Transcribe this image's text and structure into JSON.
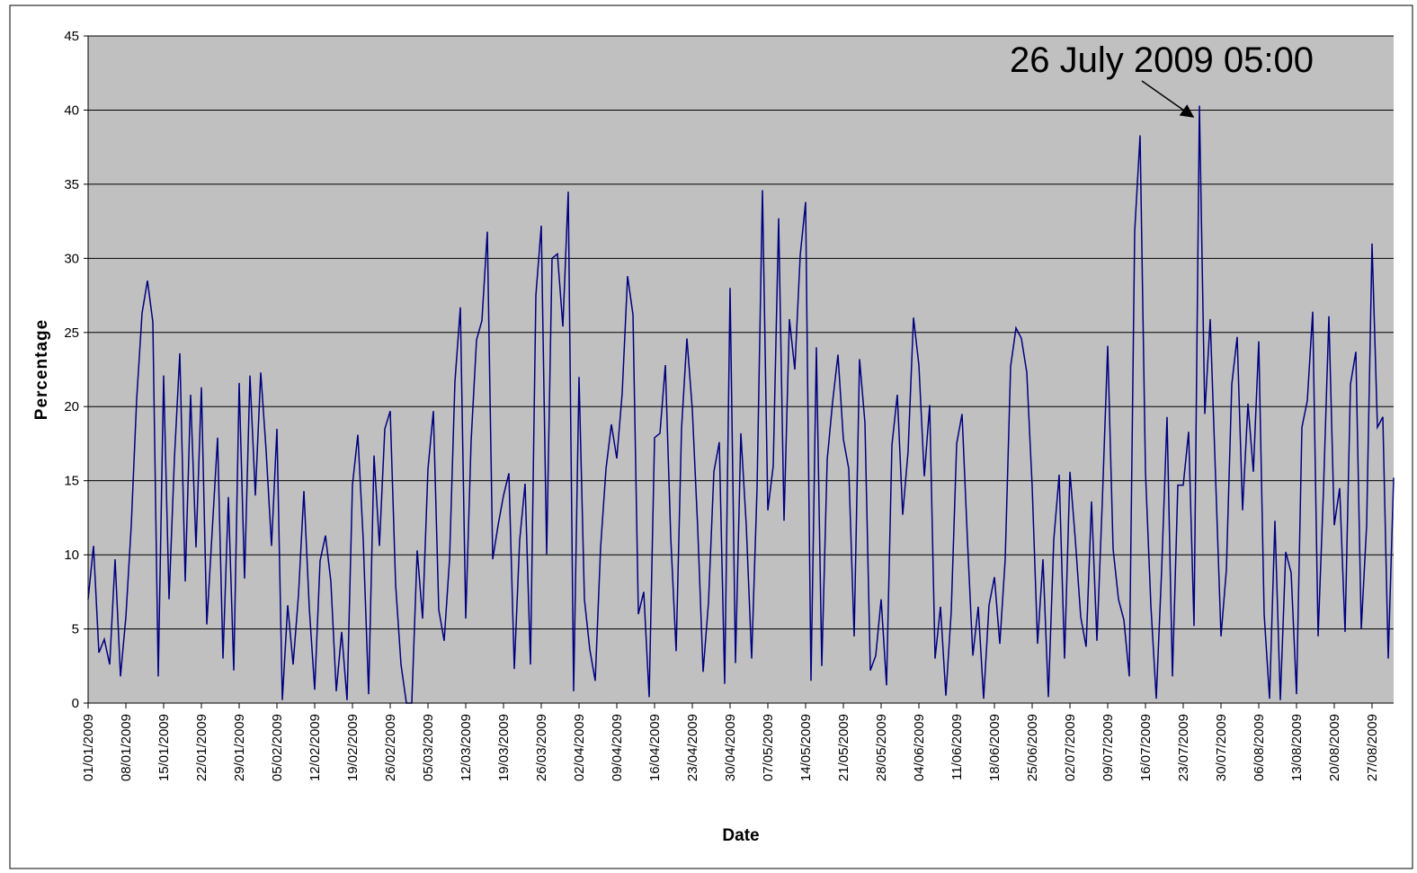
{
  "chart_data": {
    "type": "line",
    "xlabel": "Date",
    "ylabel": "Percentage",
    "annotation": "26 July 2009 05:00",
    "ylim": [
      0,
      45
    ],
    "yticks": [
      0,
      5,
      10,
      15,
      20,
      25,
      30,
      35,
      40,
      45
    ],
    "grid": true,
    "categories": [
      "01/01/2009",
      null,
      null,
      null,
      null,
      null,
      null,
      "08/01/2009",
      null,
      null,
      null,
      null,
      null,
      null,
      "15/01/2009",
      null,
      null,
      null,
      null,
      null,
      null,
      "22/01/2009",
      null,
      null,
      null,
      null,
      null,
      null,
      "29/01/2009",
      null,
      null,
      null,
      null,
      null,
      null,
      "05/02/2009",
      null,
      null,
      null,
      null,
      null,
      null,
      "12/02/2009",
      null,
      null,
      null,
      null,
      null,
      null,
      "19/02/2009",
      null,
      null,
      null,
      null,
      null,
      null,
      "26/02/2009",
      null,
      null,
      null,
      null,
      null,
      null,
      "05/03/2009",
      null,
      null,
      null,
      null,
      null,
      null,
      "12/03/2009",
      null,
      null,
      null,
      null,
      null,
      null,
      "19/03/2009",
      null,
      null,
      null,
      null,
      null,
      null,
      "26/03/2009",
      null,
      null,
      null,
      null,
      null,
      null,
      "02/04/2009",
      null,
      null,
      null,
      null,
      null,
      null,
      "09/04/2009",
      null,
      null,
      null,
      null,
      null,
      null,
      "16/04/2009",
      null,
      null,
      null,
      null,
      null,
      null,
      "23/04/2009",
      null,
      null,
      null,
      null,
      null,
      null,
      "30/04/2009",
      null,
      null,
      null,
      null,
      null,
      null,
      "07/05/2009",
      null,
      null,
      null,
      null,
      null,
      null,
      "14/05/2009",
      null,
      null,
      null,
      null,
      null,
      null,
      "21/05/2009",
      null,
      null,
      null,
      null,
      null,
      null,
      "28/05/2009",
      null,
      null,
      null,
      null,
      null,
      null,
      "04/06/2009",
      null,
      null,
      null,
      null,
      null,
      null,
      "11/06/2009",
      null,
      null,
      null,
      null,
      null,
      null,
      "18/06/2009",
      null,
      null,
      null,
      null,
      null,
      null,
      "25/06/2009",
      null,
      null,
      null,
      null,
      null,
      null,
      "02/07/2009",
      null,
      null,
      null,
      null,
      null,
      null,
      "09/07/2009",
      null,
      null,
      null,
      null,
      null,
      null,
      "16/07/2009",
      null,
      null,
      null,
      null,
      null,
      null,
      "23/07/2009",
      null,
      null,
      null,
      null,
      null,
      null,
      "30/07/2009",
      null,
      null,
      null,
      null,
      null,
      null,
      "06/08/2009",
      null,
      null,
      null,
      null,
      null,
      null,
      "13/08/2009",
      null,
      null,
      null,
      null,
      null,
      null,
      "20/08/2009",
      null,
      null,
      null,
      null,
      null,
      null,
      "27/08/2009",
      null,
      null,
      null,
      null
    ],
    "series": [
      {
        "name": "Percentage",
        "color": "#000080",
        "values": [
          7,
          10.6,
          3.4,
          4.3,
          2.6,
          9.7,
          1.8,
          5.8,
          12,
          20.5,
          26.3,
          28.5,
          25.7,
          1.8,
          22.1,
          7,
          16.5,
          23.6,
          8.2,
          20.8,
          10.5,
          21.3,
          5.3,
          11.6,
          17.9,
          3,
          13.9,
          2.2,
          21.6,
          8.4,
          22.1,
          14,
          22.3,
          17,
          10.6,
          18.5,
          0.2,
          6.6,
          2.6,
          7.3,
          14.3,
          6.4,
          0.9,
          9.6,
          11.3,
          8.2,
          0.8,
          4.8,
          0.2,
          14.7,
          18.1,
          11,
          0.6,
          16.7,
          10.6,
          18.5,
          19.7,
          8,
          2.6,
          0,
          0,
          10.3,
          5.7,
          15.8,
          19.7,
          6.3,
          4.2,
          9.7,
          21.7,
          26.7,
          5.7,
          17.7,
          24.5,
          25.8,
          31.8,
          9.7,
          12,
          14,
          15.5,
          2.3,
          11,
          14.8,
          2.6,
          27.5,
          32.2,
          10,
          30,
          30.3,
          25.4,
          34.5,
          0.8,
          22,
          7,
          3.6,
          1.5,
          10.5,
          15.8,
          18.8,
          16.5,
          20.9,
          28.8,
          26.2,
          6,
          7.5,
          0.4,
          17.9,
          18.2,
          22.8,
          11.2,
          3.5,
          18.5,
          24.6,
          19.8,
          11.8,
          2.1,
          6.8,
          15.6,
          17.6,
          1.3,
          28,
          2.7,
          18.2,
          12,
          3,
          14.5,
          34.6,
          13,
          16,
          32.7,
          12.3,
          25.9,
          22.5,
          30.2,
          33.8,
          1.5,
          24,
          2.5,
          16.4,
          20.3,
          23.5,
          17.8,
          15.8,
          4.5,
          23.2,
          18.9,
          2.2,
          3.2,
          7,
          1.2,
          17.4,
          20.8,
          12.7,
          17,
          26,
          22.8,
          15.3,
          20.1,
          3,
          6.5,
          0.5,
          6.2,
          17.5,
          19.5,
          11,
          3.2,
          6.5,
          0.3,
          6.6,
          8.5,
          4,
          9.7,
          22.7,
          25.3,
          24.6,
          22.3,
          14.6,
          4,
          9.7,
          0.4,
          11,
          15.4,
          3,
          15.6,
          11,
          5.8,
          3.8,
          13.6,
          4.2,
          13.6,
          24.1,
          10.4,
          7,
          5.6,
          1.8,
          31.8,
          38.3,
          15.6,
          6.6,
          0.3,
          9,
          19.3,
          1.8,
          14.7,
          14.7,
          18.3,
          5.2,
          40.3,
          19.5,
          25.9,
          15.2,
          4.5,
          9,
          21.5,
          24.7,
          13,
          20.2,
          15.6,
          24.4,
          6,
          0.3,
          12.3,
          0.2,
          10.2,
          8.8,
          0.6,
          18.6,
          20.4,
          26.4,
          4.5,
          14.4,
          26.1,
          12,
          14.5,
          4.8,
          21.5,
          23.7,
          5,
          12,
          31,
          18.6,
          19.3,
          3,
          15.2
        ]
      }
    ]
  }
}
